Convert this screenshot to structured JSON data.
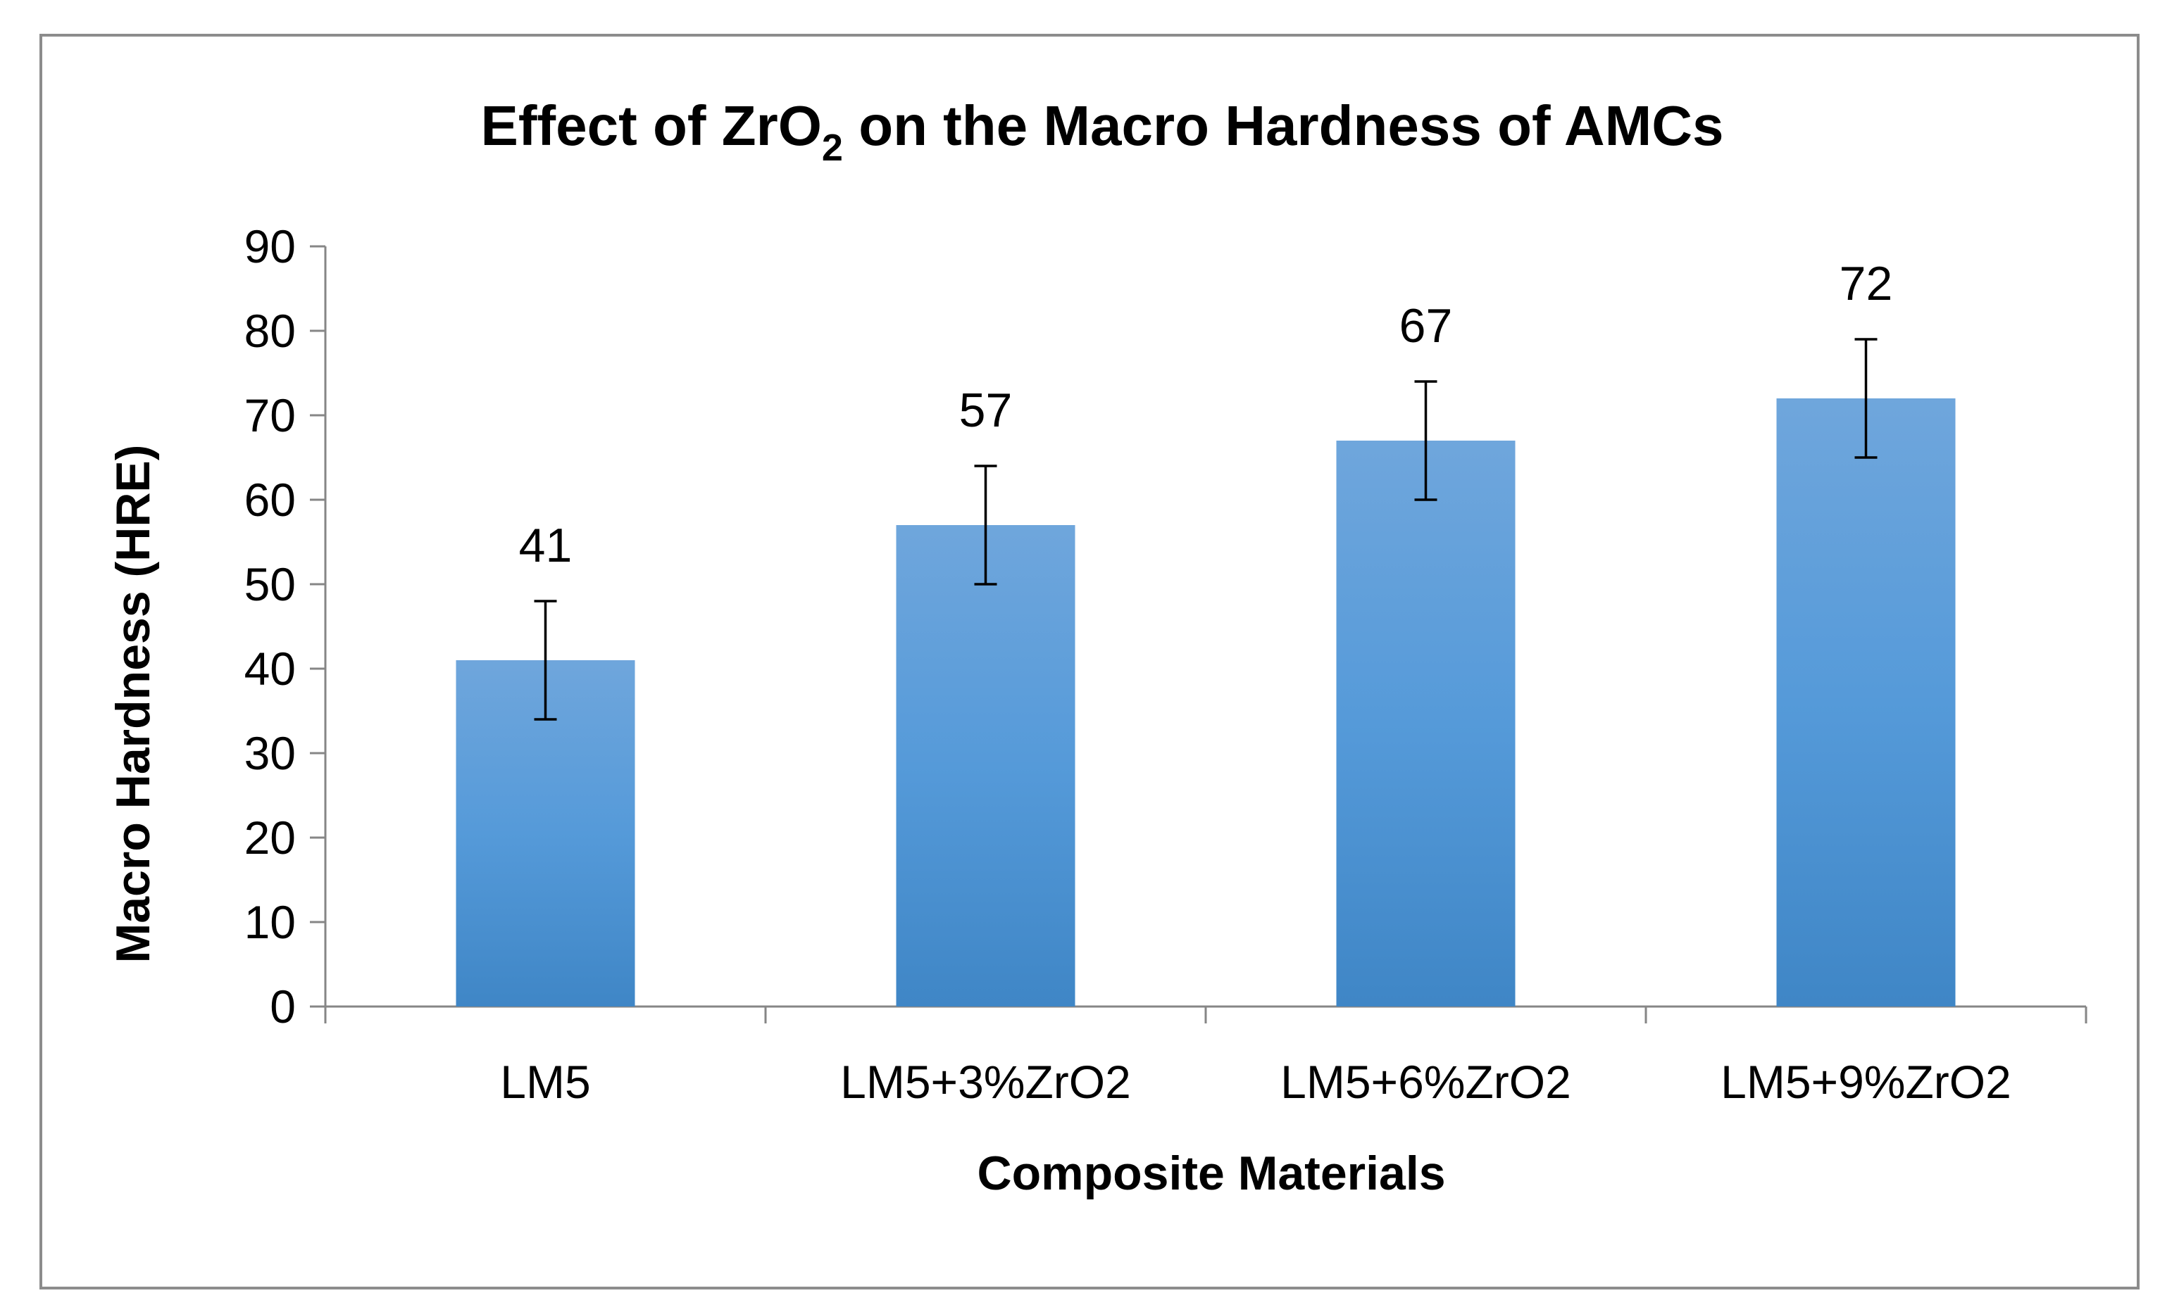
{
  "chart_data": {
    "type": "bar",
    "title_main": "Effect of ZrO",
    "title_sub": "2",
    "title_rest": " on the Macro Hardness of AMCs",
    "xlabel": "Composite Materials",
    "ylabel": "Macro Hardness (HRE)",
    "categories": [
      "LM5",
      "LM5+3%ZrO2",
      "LM5+6%ZrO2",
      "LM5+9%ZrO2"
    ],
    "values": [
      41,
      57,
      67,
      72
    ],
    "data_labels": [
      "41",
      "57",
      "67",
      "72"
    ],
    "error": [
      7,
      7,
      7,
      7
    ],
    "ylim": [
      0,
      90
    ],
    "yticks": [
      0,
      10,
      20,
      30,
      40,
      50,
      60,
      70,
      80,
      90
    ],
    "ytick_labels": [
      "0",
      "10",
      "20",
      "30",
      "40",
      "50",
      "60",
      "70",
      "80",
      "90"
    ],
    "bar_color_top": "#6fa6dc",
    "bar_color_mid": "#559ad9",
    "bar_color_bottom": "#3f86c6",
    "grid": false,
    "legend": "none"
  }
}
